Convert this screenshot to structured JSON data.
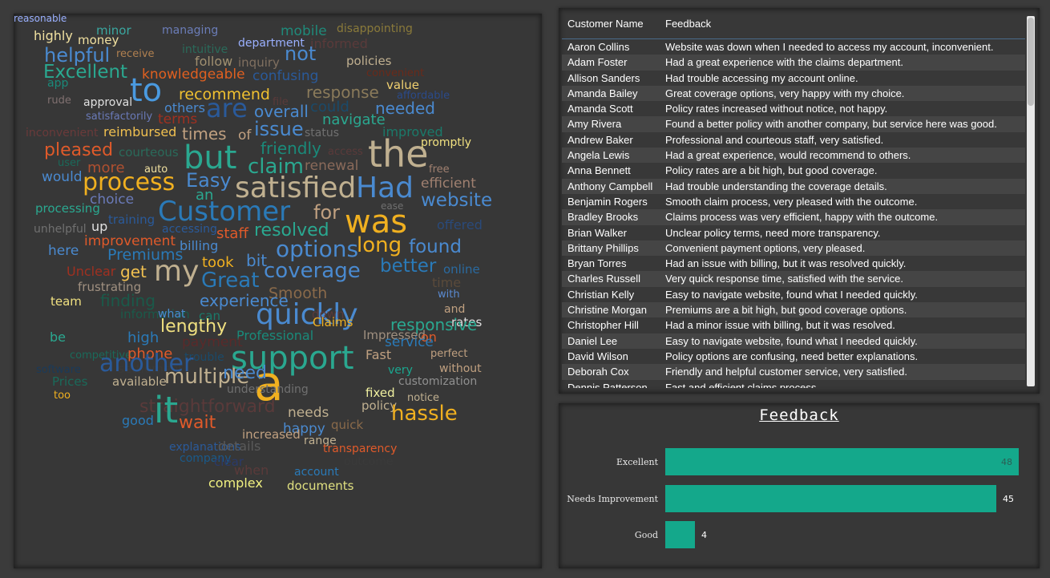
{
  "wordcloud": [
    {
      "t": "highly",
      "c": "#f0e0a0"
    },
    {
      "t": "minor",
      "c": "#3aa7a0"
    },
    {
      "t": "managing",
      "c": "#6b7db8"
    },
    {
      "t": "mobile",
      "c": "#1f8a7a"
    },
    {
      "t": "disappointing",
      "c": "#8a7a3a"
    },
    {
      "t": "money",
      "c": "#f0e0a0"
    },
    {
      "t": "department",
      "c": "#9ab0ff"
    },
    {
      "t": "informed",
      "c": "#5a3a3a"
    },
    {
      "t": "helpful",
      "c": "#4a8ad0"
    },
    {
      "t": "receive",
      "c": "#b08050"
    },
    {
      "t": "intuitive",
      "c": "#2a6a5a"
    },
    {
      "t": "not",
      "c": "#4a8ad0"
    },
    {
      "t": "follow",
      "c": "#a09070"
    },
    {
      "t": "inquiry",
      "c": "#807060"
    },
    {
      "t": "policies",
      "c": "#c0b090"
    },
    {
      "t": "Excellent",
      "c": "#2aa890"
    },
    {
      "t": "knowledgeable",
      "c": "#e06020"
    },
    {
      "t": "confusing",
      "c": "#2a5a9a"
    },
    {
      "t": "convenient",
      "c": "#6a2a1a"
    },
    {
      "t": "app",
      "c": "#1a8a7a"
    },
    {
      "t": "to",
      "c": "#4a9ae0"
    },
    {
      "t": "response",
      "c": "#8a7a5a"
    },
    {
      "t": "value",
      "c": "#f0d070"
    },
    {
      "t": "rude",
      "c": "#807070"
    },
    {
      "t": "approval",
      "c": "#e0e0e0"
    },
    {
      "t": "recommend",
      "c": "#f0c030"
    },
    {
      "t": "file",
      "c": "#5a3a3a"
    },
    {
      "t": "affordable",
      "c": "#2a4a8a"
    },
    {
      "t": "others",
      "c": "#4a8ad0"
    },
    {
      "t": "are",
      "c": "#2a5a9a"
    },
    {
      "t": "overall",
      "c": "#4a8ad0"
    },
    {
      "t": "could",
      "c": "#1a4a6a"
    },
    {
      "t": "needed",
      "c": "#4a8ad0"
    },
    {
      "t": "satisfactorily",
      "c": "#6a7ab8"
    },
    {
      "t": "terms",
      "c": "#a03020"
    },
    {
      "t": "issue",
      "c": "#4a8ad0"
    },
    {
      "t": "navigate",
      "c": "#2aa890"
    },
    {
      "t": "inconvenient",
      "c": "#6a3a3a"
    },
    {
      "t": "reimbursed",
      "c": "#f0c050"
    },
    {
      "t": "times",
      "c": "#c0a080"
    },
    {
      "t": "of",
      "c": "#c0a080"
    },
    {
      "t": "status",
      "c": "#707070"
    },
    {
      "t": "improved",
      "c": "#1a7a6a"
    },
    {
      "t": "pleased",
      "c": "#e05a2a"
    },
    {
      "t": "but",
      "c": "#2aa890"
    },
    {
      "t": "friendly",
      "c": "#1a8a7a"
    },
    {
      "t": "the",
      "c": "#c0b090"
    },
    {
      "t": "promptly",
      "c": "#f0e080"
    },
    {
      "t": "courteous",
      "c": "#2a6a5a"
    },
    {
      "t": "access",
      "c": "#5a3a3a"
    },
    {
      "t": "user",
      "c": "#1a6a5a"
    },
    {
      "t": "more",
      "c": "#b05030"
    },
    {
      "t": "auto",
      "c": "#f0e0a0"
    },
    {
      "t": "claim",
      "c": "#2aa890"
    },
    {
      "t": "renewal",
      "c": "#8a6a5a"
    },
    {
      "t": "free",
      "c": "#a08070"
    },
    {
      "t": "would",
      "c": "#4a8ad0"
    },
    {
      "t": "process",
      "c": "#f0b020"
    },
    {
      "t": "Easy",
      "c": "#4a8ad0"
    },
    {
      "t": "satisfied",
      "c": "#c0b090"
    },
    {
      "t": "Had",
      "c": "#4a8ad0"
    },
    {
      "t": "efficient",
      "c": "#a08070"
    },
    {
      "t": "choice",
      "c": "#6a7ab8"
    },
    {
      "t": "an",
      "c": "#2aa890"
    },
    {
      "t": "website",
      "c": "#4a8ad0"
    },
    {
      "t": "processing",
      "c": "#2aa890"
    },
    {
      "t": "Customer",
      "c": "#2a7ab8"
    },
    {
      "t": "for",
      "c": "#c0a080"
    },
    {
      "t": "was",
      "c": "#f0b020"
    },
    {
      "t": "ease",
      "c": "#707070"
    },
    {
      "t": "training",
      "c": "#2a5a9a"
    },
    {
      "t": "offered",
      "c": "#2a4a7a"
    },
    {
      "t": "unhelpful",
      "c": "#707070"
    },
    {
      "t": "up",
      "c": "#e0e0e0"
    },
    {
      "t": "accessing",
      "c": "#2a5a9a"
    },
    {
      "t": "staff",
      "c": "#e05a2a"
    },
    {
      "t": "resolved",
      "c": "#2aa890"
    },
    {
      "t": "long",
      "c": "#f0b020"
    },
    {
      "t": "improvement",
      "c": "#e05a2a"
    },
    {
      "t": "billing",
      "c": "#4a8ad0"
    },
    {
      "t": "found",
      "c": "#4a8ad0"
    },
    {
      "t": "here",
      "c": "#4a8ad0"
    },
    {
      "t": "Premiums",
      "c": "#2a7ab8"
    },
    {
      "t": "bit",
      "c": "#4a8ad0"
    },
    {
      "t": "options",
      "c": "#4a8ad0"
    },
    {
      "t": "took",
      "c": "#f0b020"
    },
    {
      "t": "better",
      "c": "#2a7ab8"
    },
    {
      "t": "Unclear",
      "c": "#a03020"
    },
    {
      "t": "get",
      "c": "#f0c050"
    },
    {
      "t": "my",
      "c": "#c0b090"
    },
    {
      "t": "coverage",
      "c": "#4a8ad0"
    },
    {
      "t": "online",
      "c": "#2a6aa0"
    },
    {
      "t": "Great",
      "c": "#2a7ab8"
    },
    {
      "t": "frustrating",
      "c": "#a09080"
    },
    {
      "t": "Smooth",
      "c": "#8a6a4a"
    },
    {
      "t": "time",
      "c": "#5a4a3a"
    },
    {
      "t": "with",
      "c": "#5a8ad0"
    },
    {
      "t": "team",
      "c": "#f0e080"
    },
    {
      "t": "finding",
      "c": "#1a5a4a"
    },
    {
      "t": "experience",
      "c": "#4a8ad0"
    },
    {
      "t": "quickly",
      "c": "#4a8ad0"
    },
    {
      "t": "and",
      "c": "#c0a080"
    },
    {
      "t": "information",
      "c": "#1a5a4a"
    },
    {
      "t": "what",
      "c": "#4a8ad0"
    },
    {
      "t": "down",
      "c": "#5a3a3a"
    },
    {
      "t": "can",
      "c": "#1a7a6a"
    },
    {
      "t": "rates",
      "c": "#e0e0e0"
    },
    {
      "t": "lengthy",
      "c": "#f0e080"
    },
    {
      "t": "Claims",
      "c": "#f0b020"
    },
    {
      "t": "responsive",
      "c": "#2aa890"
    },
    {
      "t": "high",
      "c": "#2a7ab8"
    },
    {
      "t": "be",
      "c": "#2aa890"
    },
    {
      "t": "Professional",
      "c": "#1a8a7a"
    },
    {
      "t": "Impressed",
      "c": "#a09080"
    },
    {
      "t": "on",
      "c": "#e05a2a"
    },
    {
      "t": "competitive",
      "c": "#1a6a5a"
    },
    {
      "t": "payment",
      "c": "#5a2a2a"
    },
    {
      "t": "support",
      "c": "#2aa890"
    },
    {
      "t": "service",
      "c": "#2a7ab8"
    },
    {
      "t": "phone",
      "c": "#e05a2a"
    },
    {
      "t": "trouble",
      "c": "#1a4a6a"
    },
    {
      "t": "Fast",
      "c": "#c0a080"
    },
    {
      "t": "perfect",
      "c": "#c0a080"
    },
    {
      "t": "software",
      "c": "#1a3a5a"
    },
    {
      "t": "settlement",
      "c": "#3a3a3a"
    },
    {
      "t": "another",
      "c": "#2a5a9a"
    },
    {
      "t": "a",
      "c": "#f0b020"
    },
    {
      "t": "very",
      "c": "#1aa890"
    },
    {
      "t": "without",
      "c": "#c0a080"
    },
    {
      "t": "customization",
      "c": "#909090"
    },
    {
      "t": "Prices",
      "c": "#1a6a5a"
    },
    {
      "t": "available",
      "c": "#c0b090"
    },
    {
      "t": "multiple",
      "c": "#c0b090"
    },
    {
      "t": "need",
      "c": "#4a8ad0"
    },
    {
      "t": "too",
      "c": "#f0b020"
    },
    {
      "t": "understanding",
      "c": "#707070"
    },
    {
      "t": "fixed",
      "c": "#f0f0a0"
    },
    {
      "t": "notice",
      "c": "#c0b090"
    },
    {
      "t": "straightforward",
      "c": "#5a3a3a"
    },
    {
      "t": "it",
      "c": "#2aa890"
    },
    {
      "t": "policy",
      "c": "#c0b090"
    },
    {
      "t": "needs",
      "c": "#c0b090"
    },
    {
      "t": "hassle",
      "c": "#f0b020"
    },
    {
      "t": "good",
      "c": "#2a7ab8"
    },
    {
      "t": "wait",
      "c": "#e05a2a"
    },
    {
      "t": "happy",
      "c": "#4a8ad0"
    },
    {
      "t": "quick",
      "c": "#8a6a4a"
    },
    {
      "t": "increased",
      "c": "#c0a080"
    },
    {
      "t": "range",
      "c": "#c0b090"
    },
    {
      "t": "explanations",
      "c": "#2a5a9a"
    },
    {
      "t": "details",
      "c": "#5a5a5a"
    },
    {
      "t": "transparency",
      "c": "#e05a2a"
    },
    {
      "t": "company",
      "c": "#1a5a8a"
    },
    {
      "t": "clear",
      "c": "#2a3a6a"
    },
    {
      "t": "outcome",
      "c": "#3a3a3a"
    },
    {
      "t": "when",
      "c": "#5a3a3a"
    },
    {
      "t": "account",
      "c": "#2a7ab8"
    },
    {
      "t": "complex",
      "c": "#f0f080"
    },
    {
      "t": "documents",
      "c": "#e0e080"
    },
    {
      "t": "reasonable",
      "c": "#9ab0ff"
    }
  ],
  "table": {
    "headers": [
      "Customer Name",
      "Feedback"
    ],
    "rows": [
      [
        "Aaron Collins",
        "Website was down when I needed to access my account, inconvenient."
      ],
      [
        "Adam Foster",
        "Had a great experience with the claims department."
      ],
      [
        "Allison Sanders",
        "Had trouble accessing my account online."
      ],
      [
        "Amanda Bailey",
        "Great coverage options, very happy with my choice."
      ],
      [
        "Amanda Scott",
        "Policy rates increased without notice, not happy."
      ],
      [
        "Amy Rivera",
        "Found a better policy with another company, but service here was good."
      ],
      [
        "Andrew Baker",
        "Professional and courteous staff, very satisfied."
      ],
      [
        "Angela Lewis",
        "Had a great experience, would recommend to others."
      ],
      [
        "Anna Bennett",
        "Policy rates are a bit high, but good coverage."
      ],
      [
        "Anthony Campbell",
        "Had trouble understanding the coverage details."
      ],
      [
        "Benjamin Rogers",
        "Smooth claim process, very pleased with the outcome."
      ],
      [
        "Bradley Brooks",
        "Claims process was very efficient, happy with the outcome."
      ],
      [
        "Brian Walker",
        "Unclear policy terms, need more transparency."
      ],
      [
        "Brittany Phillips",
        "Convenient payment options, very pleased."
      ],
      [
        "Bryan Torres",
        "Had an issue with billing, but it was resolved quickly."
      ],
      [
        "Charles Russell",
        "Very quick response time, satisfied with the service."
      ],
      [
        "Christian Kelly",
        "Easy to navigate website, found what I needed quickly."
      ],
      [
        "Christine Morgan",
        "Premiums are a bit high, but good coverage options."
      ],
      [
        "Christopher Hill",
        "Had a minor issue with billing, but it was resolved."
      ],
      [
        "Daniel Lee",
        "Easy to navigate website, found what I needed quickly."
      ],
      [
        "David Wilson",
        "Policy options are confusing, need better explanations."
      ],
      [
        "Deborah Cox",
        "Friendly and helpful customer service, very satisfied."
      ],
      [
        "Dennis Patterson",
        "Fast and efficient claims process."
      ]
    ]
  },
  "chart_data": {
    "type": "bar",
    "title": "Feedback",
    "categories": [
      "Excellent",
      "Needs Improvement",
      "Good"
    ],
    "values": [
      48,
      45,
      4
    ],
    "color": "#14a88b"
  }
}
